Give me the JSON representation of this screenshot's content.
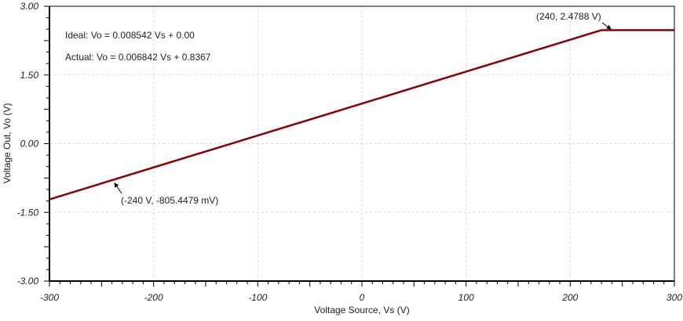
{
  "chart_data": {
    "type": "line",
    "title": "",
    "xlabel": "Voltage Source, Vs (V)",
    "ylabel": "Voltage Out, Vo (V)",
    "xlim": [
      -300,
      300
    ],
    "ylim": [
      -3,
      3
    ],
    "xticks": [
      -300,
      -200,
      -100,
      0,
      100,
      200,
      300
    ],
    "xtick_labels": [
      "-300",
      "-200",
      "-100",
      "0",
      "100",
      "200",
      "300"
    ],
    "yticks": [
      -3,
      -1.5,
      0,
      1.5,
      3
    ],
    "ytick_labels": [
      "-3.00",
      "-1.50",
      "0.00",
      "1.50",
      "3.00"
    ],
    "grid": true,
    "series": [
      {
        "color": "#8b0000",
        "x": [
          -300,
          230,
          300
        ],
        "y": [
          -1.216,
          2.4788,
          2.4788
        ]
      }
    ],
    "equations": [
      "Ideal: Vo = 0.008542 Vs + 0.00",
      "Actual: Vo = 0.006842 Vs + 0.8367"
    ],
    "annotations": [
      {
        "text": "(240, 2.4788 V)",
        "x": 240,
        "y": 2.4788
      },
      {
        "text": "(-240 V, -805.4479 mV)",
        "x": -240,
        "y": -0.8054
      }
    ]
  }
}
